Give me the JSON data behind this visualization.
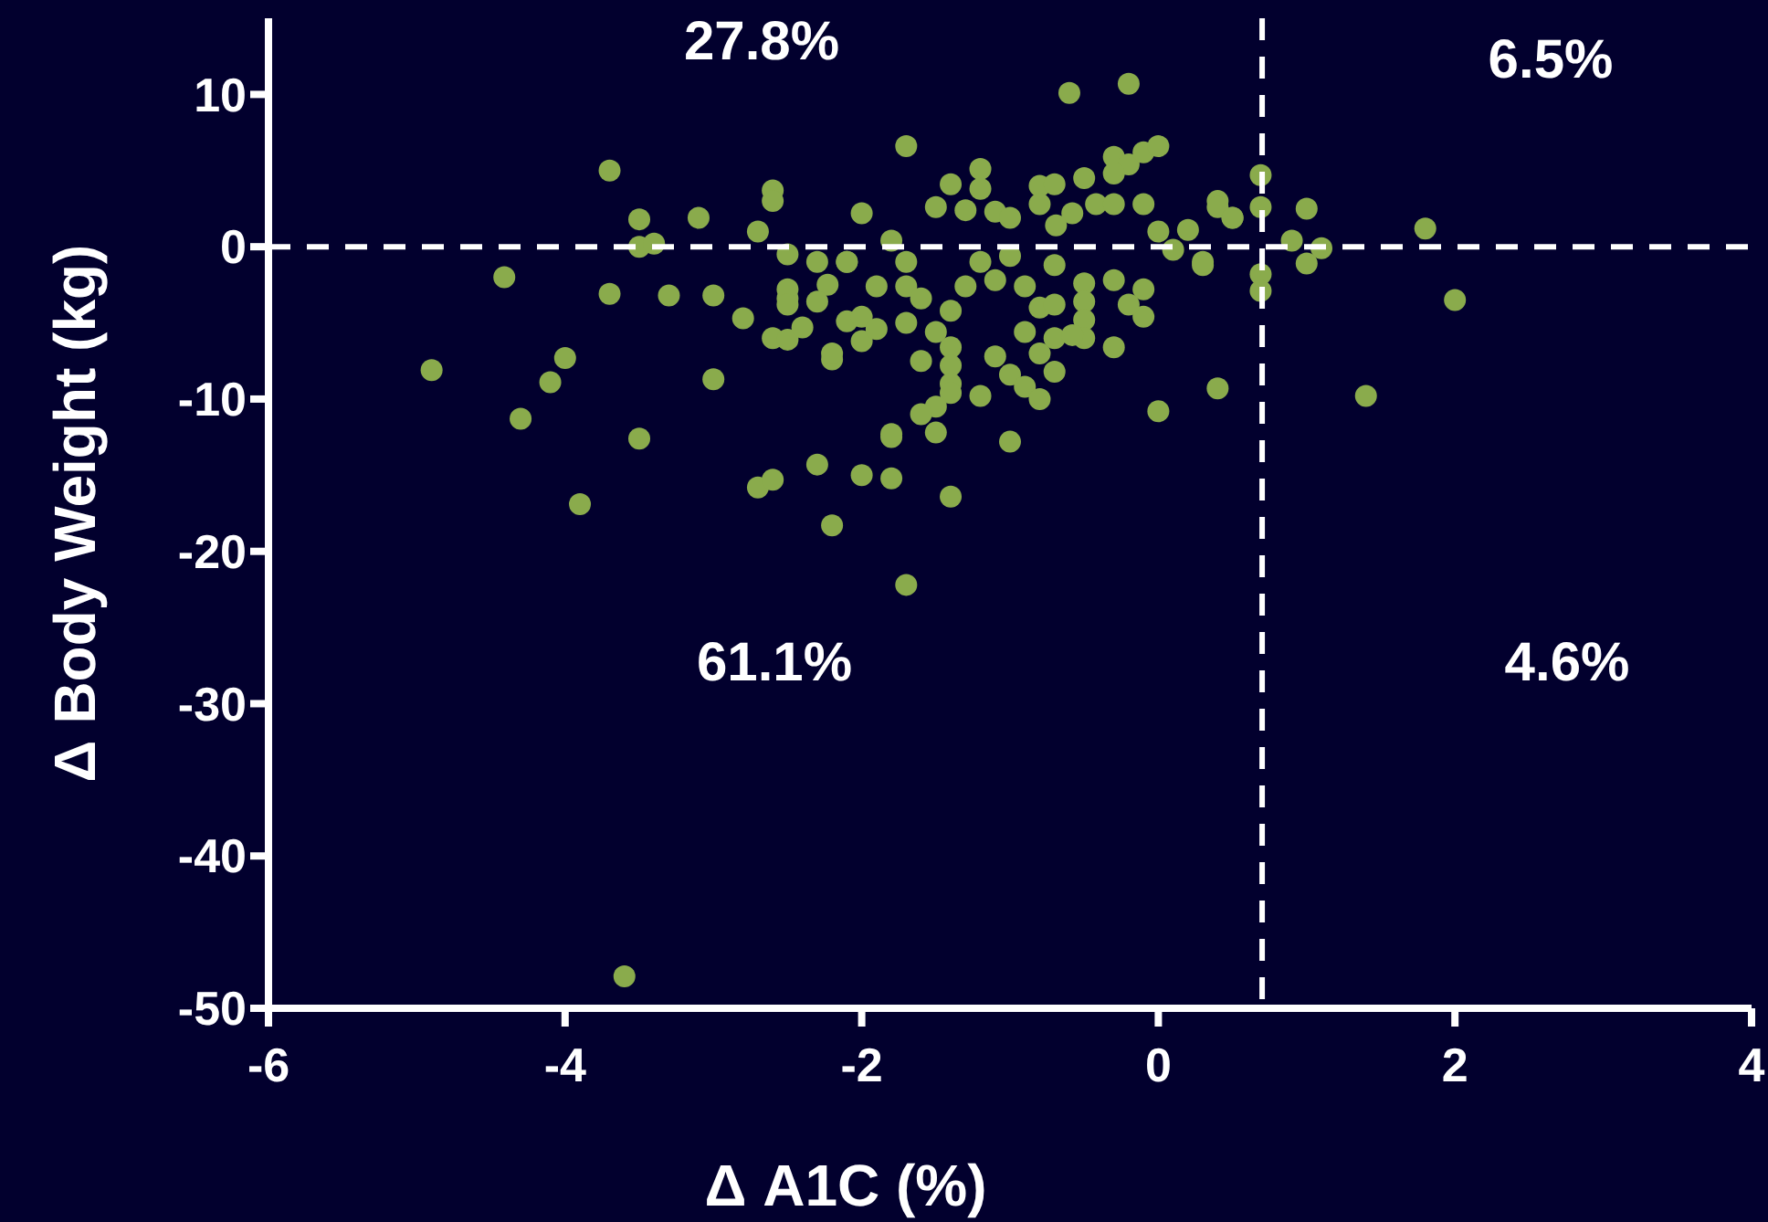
{
  "chart_data": {
    "type": "scatter",
    "xlabel": "Δ A1C (%)",
    "ylabel": "Δ Body Weight (kg)",
    "xlim": [
      -6,
      4
    ],
    "ylim": [
      -50,
      15
    ],
    "xticks": [
      -6,
      -4,
      -2,
      0,
      2,
      4
    ],
    "yticks": [
      -50,
      -40,
      -30,
      -20,
      -10,
      0,
      10
    ],
    "grid": false,
    "marker": "circle",
    "ref_lines": [
      {
        "axis": "x",
        "value": 0.7,
        "color": "#ffffff",
        "line_style": "dashed"
      },
      {
        "axis": "y",
        "value": 0,
        "color": "#ffffff",
        "line_style": "dashed"
      }
    ],
    "annotations": [
      "27.8%",
      "6.5%",
      "61.1%",
      "4.6%"
    ],
    "series": [
      {
        "color": "#8aab4c",
        "x": [
          -4.9,
          -4.41,
          -4.3,
          -4.1,
          -4.0,
          -3.9,
          -3.7,
          -3.7,
          -3.5,
          -3.5,
          -3.5,
          -3.3,
          -3.1,
          -3.0,
          -3.0,
          -2.8,
          -2.7,
          -2.7,
          -2.6,
          -2.6,
          -2.6,
          -2.5,
          -2.5,
          -2.3,
          -2.2,
          -2.0,
          -2.0,
          -1.8,
          -1.8,
          -1.7,
          -1.7,
          -3.6,
          -3.4,
          -2.6,
          -2.5,
          -2.4,
          -2.5,
          -2.5,
          -2.3,
          -2.1,
          -2.23,
          -2.3,
          -2.1,
          -2.0,
          -2.2,
          -2.2,
          -0.6,
          -0.2,
          -1.4,
          -1.2,
          -1.2,
          -1.5,
          -1.3,
          -1.1,
          -1.0,
          -0.8,
          -0.7,
          -0.8,
          -0.5,
          -0.3,
          -0.2,
          -0.1,
          0,
          -0.3,
          -0.42,
          -0.3,
          -0.1,
          -0.58,
          -0.69,
          0.4,
          0.5,
          0.2,
          0,
          0.1,
          0.3,
          0.69,
          0.69,
          0.69,
          0.69,
          0.9,
          -1.8,
          -1.7,
          -2.1,
          -1.7,
          -1.6,
          -1.9,
          -2.0,
          -1.9,
          -1.7,
          -1.5,
          -1.4,
          -1.3,
          -1.2,
          -1.1,
          -1.0,
          -0.9,
          -0.8,
          -0.7,
          -0.7,
          -0.5,
          -0.5,
          -0.5,
          -0.5,
          -0.3,
          -0.1,
          -0.1,
          -0.2,
          -0.9,
          -0.7,
          -0.8,
          -0.58,
          -0.3,
          -0.7,
          -1.1,
          -1.0,
          -0.9,
          -0.8,
          -1.4,
          -1.4,
          -1.4,
          -1.6,
          -1.4,
          -1.2,
          -1.5,
          -1.6,
          -1.8,
          -1.5,
          -1.0,
          0,
          0.4,
          -1.4,
          0.4,
          0.5,
          1.0,
          1.1,
          1.0,
          1.8,
          2.0,
          1.4,
          0.3
        ],
        "values": [
          -8.1,
          -2.0,
          -11.3,
          -8.9,
          -7.3,
          -16.9,
          5.0,
          -3.1,
          1.8,
          0,
          -12.6,
          -3.2,
          1.9,
          -8.7,
          -3.2,
          -4.7,
          1.0,
          -15.8,
          -15.3,
          3.7,
          3.0,
          -0.5,
          -3.4,
          -14.3,
          -18.3,
          2.2,
          -15.0,
          -15.2,
          -12.5,
          -22.2,
          6.6,
          -47.9,
          0.2,
          -6.0,
          -6.1,
          -5.3,
          -2.8,
          -3.8,
          -1.0,
          -1.0,
          -2.5,
          -3.6,
          -4.9,
          -6.2,
          -7.4,
          -7.0,
          10.1,
          10.7,
          4.1,
          5.1,
          3.8,
          2.6,
          2.4,
          2.3,
          1.9,
          4.0,
          4.1,
          2.8,
          4.5,
          5.9,
          5.4,
          6.2,
          6.6,
          4.8,
          2.8,
          2.8,
          2.8,
          2.2,
          1.4,
          3.0,
          1.9,
          1.1,
          1.0,
          -0.2,
          -1.2,
          4.7,
          2.6,
          -1.8,
          -2.9,
          0.4,
          0.4,
          -1.0,
          -1.0,
          -2.6,
          -3.4,
          -2.6,
          -4.6,
          -5.4,
          -5.0,
          -5.6,
          -4.2,
          -2.6,
          -1.0,
          -2.2,
          -0.6,
          -2.6,
          -4.0,
          -3.8,
          -1.2,
          -2.4,
          -3.6,
          -4.8,
          -6.0,
          -2.2,
          -2.8,
          -4.6,
          -3.8,
          -5.6,
          -6.0,
          -7.0,
          -5.8,
          -6.6,
          -8.2,
          -7.2,
          -8.4,
          -9.2,
          -10.0,
          -6.6,
          -7.8,
          -9.0,
          -7.5,
          -9.6,
          -9.8,
          -10.5,
          -11.0,
          -12.3,
          -12.2,
          -12.8,
          -10.8,
          -9.3,
          -16.4,
          2.6,
          1.9,
          2.5,
          -0.1,
          -1.1,
          1.2,
          -3.5,
          -9.8,
          -1.0
        ]
      }
    ]
  }
}
